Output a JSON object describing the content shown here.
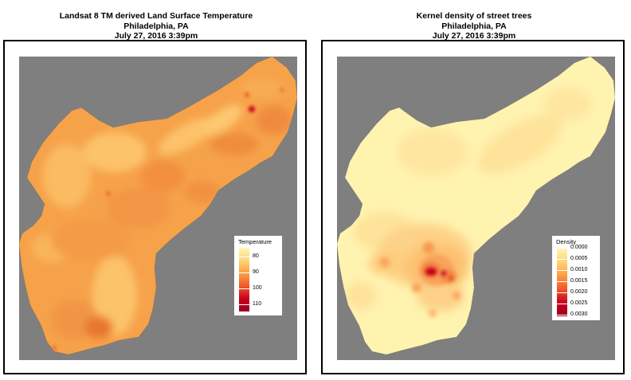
{
  "panels": {
    "left": {
      "title_lines": [
        "Landsat 8 TM derived Land Surface Temperature",
        "Philadelphia, PA",
        "July 27, 2016 3:39pm"
      ],
      "legend": {
        "title": "Temperature",
        "ticks": [
          "80",
          "90",
          "100",
          "110"
        ],
        "colors": [
          "#fff6b3",
          "#fed57a",
          "#fd9e42",
          "#f05a2a",
          "#c8001e",
          "#99001c"
        ]
      }
    },
    "right": {
      "title_lines": [
        "Kernel density of street trees",
        "Philadelphia, PA",
        "July 27, 2016 3:39pm"
      ],
      "legend": {
        "title": "Density",
        "ticks": [
          "0.0000",
          "0.0005",
          "0.0010",
          "0.0015",
          "0.0020",
          "0.0025",
          "0.0030"
        ],
        "colors": [
          "#fff6b3",
          "#fed57a",
          "#fd9e42",
          "#f05a2a",
          "#c8001e",
          "#99001c"
        ]
      }
    }
  },
  "map_colors": {
    "background": "#7f7f7f",
    "lst_base": "#f6a24a",
    "lst_cool": "#fcc36b",
    "lst_hot": "#e86a2c",
    "density_base": "#fff3b0",
    "density_mid": "#fdd187",
    "density_high": "#f78b4c",
    "density_peak": "#c8001e"
  }
}
